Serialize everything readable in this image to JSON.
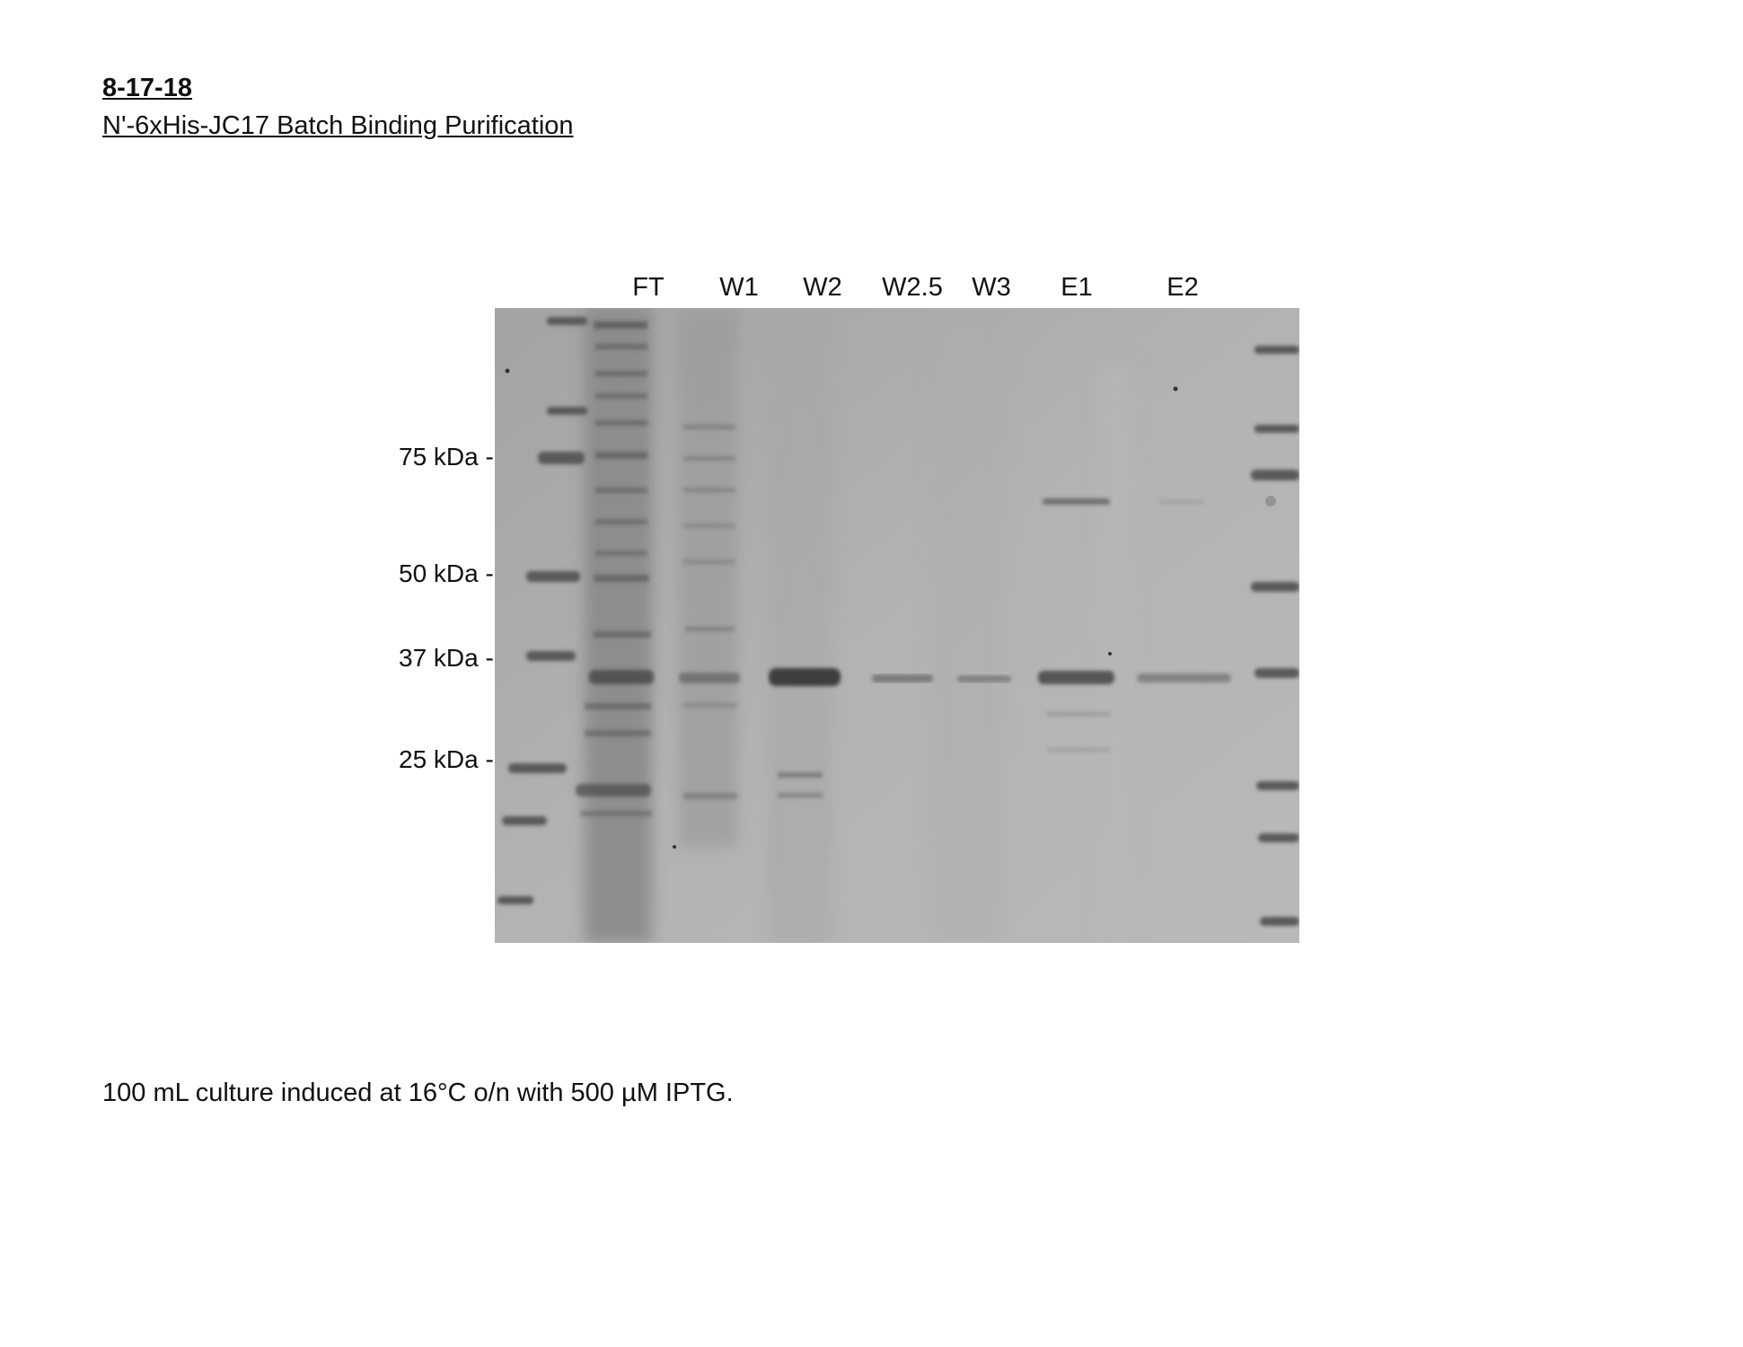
{
  "header": {
    "date": "8-17-18",
    "title": "N'-6xHis-JC17 Batch Binding Purification"
  },
  "gel": {
    "lanes": [
      "FT",
      "W1",
      "W2",
      "W2.5",
      "W3",
      "E1",
      "E2"
    ],
    "markers": [
      {
        "label": "75 kDa --"
      },
      {
        "label": "50 kDa --"
      },
      {
        "label": "37 kDa --"
      },
      {
        "label": "25 kDa --"
      }
    ],
    "band_intensity_target_band": {
      "FT": 0.85,
      "W1": 0.6,
      "W2": 0.95,
      "W2.5": 0.4,
      "W3": 0.35,
      "E1": 0.8,
      "E2": 0.35
    }
  },
  "caption": "100 mL culture induced at 16°C o/n with 500 µM IPTG."
}
